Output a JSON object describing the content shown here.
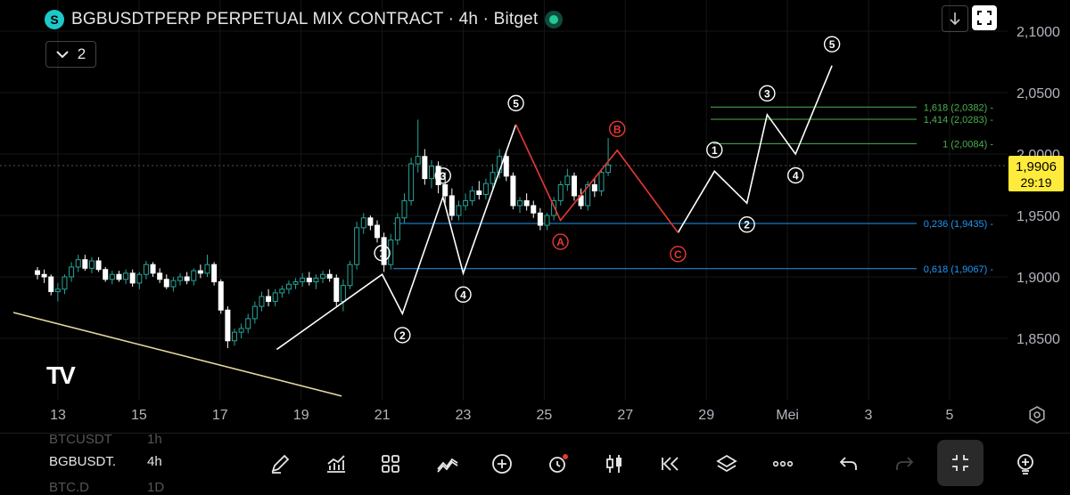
{
  "header": {
    "title": "BGBUSDTPERP PERPETUAL MIX CONTRACT · 4h · Bitget",
    "indicators_toggle": "2"
  },
  "colors": {
    "background": "#000000",
    "up_candle": "#26a69a",
    "down_candle": "#ffffff",
    "impulse_line": "#ffffff",
    "correction_line": "#e53935",
    "fib_green": "#4caf50",
    "fib_blue": "#2196f3",
    "trendline": "#e8d9a0",
    "price_tag_bg": "#ffeb3b"
  },
  "price_label": {
    "price": "1,9906",
    "countdown": "29:19"
  },
  "watchlist": [
    {
      "symbol": "BTCUSDT",
      "interval": "1h"
    },
    {
      "symbol": "BGBUSDT.",
      "interval": "4h"
    },
    {
      "symbol": "BTC.D",
      "interval": "1D"
    }
  ],
  "toolbar": [
    {
      "icon": "pencil-icon"
    },
    {
      "icon": "indicators-icon"
    },
    {
      "icon": "grid-icon"
    },
    {
      "icon": "wave-icon"
    },
    {
      "icon": "plus-circle-icon"
    },
    {
      "icon": "alert-clock-icon"
    },
    {
      "icon": "candles-icon"
    },
    {
      "icon": "rewind-icon"
    },
    {
      "icon": "layers-icon"
    },
    {
      "icon": "more-icon"
    },
    {
      "icon": "undo-icon"
    },
    {
      "icon": "redo-icon"
    },
    {
      "icon": "collapse-icon"
    },
    {
      "icon": "lightbulb-icon"
    }
  ],
  "chart_data": {
    "type": "candlestick",
    "x_ticks": [
      "13",
      "15",
      "17",
      "19",
      "21",
      "23",
      "25",
      "27",
      "29",
      "Mei",
      "3",
      "5"
    ],
    "y_ticks": [
      "2,1000",
      "2,0500",
      "2,0000",
      "1,9500",
      "1,9000",
      "1,8500"
    ],
    "ylim": [
      1.8,
      2.115
    ],
    "fib_levels": [
      {
        "label": "1,618 (2,0382)",
        "value": 2.0382,
        "color": "green"
      },
      {
        "label": "1,414 (2,0283)",
        "value": 2.0283,
        "color": "green"
      },
      {
        "label": "1 (2,0084)",
        "value": 2.0084,
        "color": "green"
      },
      {
        "label": "0,236 (1,9435)",
        "value": 1.9435,
        "color": "blue"
      },
      {
        "label": "0,618 (1,9067)",
        "value": 1.9067,
        "color": "blue"
      }
    ],
    "candles": [
      [
        1.905,
        1.908,
        1.898,
        1.902
      ],
      [
        1.902,
        1.906,
        1.895,
        1.9
      ],
      [
        1.9,
        1.902,
        1.885,
        1.888
      ],
      [
        1.888,
        1.895,
        1.88,
        1.89
      ],
      [
        1.89,
        1.902,
        1.886,
        1.9
      ],
      [
        1.9,
        1.912,
        1.896,
        1.908
      ],
      [
        1.908,
        1.918,
        1.904,
        1.914
      ],
      [
        1.914,
        1.918,
        1.905,
        1.907
      ],
      [
        1.907,
        1.916,
        1.903,
        1.913
      ],
      [
        1.913,
        1.916,
        1.904,
        1.906
      ],
      [
        1.906,
        1.908,
        1.896,
        1.898
      ],
      [
        1.898,
        1.905,
        1.894,
        1.902
      ],
      [
        1.902,
        1.905,
        1.896,
        1.898
      ],
      [
        1.898,
        1.906,
        1.894,
        1.903
      ],
      [
        1.903,
        1.906,
        1.892,
        1.895
      ],
      [
        1.895,
        1.904,
        1.89,
        1.902
      ],
      [
        1.902,
        1.913,
        1.898,
        1.91
      ],
      [
        1.91,
        1.912,
        1.9,
        1.903
      ],
      [
        1.903,
        1.907,
        1.895,
        1.898
      ],
      [
        1.898,
        1.902,
        1.89,
        1.892
      ],
      [
        1.892,
        1.9,
        1.888,
        1.897
      ],
      [
        1.897,
        1.903,
        1.893,
        1.9
      ],
      [
        1.9,
        1.904,
        1.894,
        1.897
      ],
      [
        1.897,
        1.907,
        1.893,
        1.905
      ],
      [
        1.905,
        1.91,
        1.899,
        1.903
      ],
      [
        1.903,
        1.918,
        1.9,
        1.91
      ],
      [
        1.91,
        1.912,
        1.893,
        1.896
      ],
      [
        1.896,
        1.898,
        1.87,
        1.873
      ],
      [
        1.873,
        1.876,
        1.842,
        1.848
      ],
      [
        1.848,
        1.858,
        1.844,
        1.855
      ],
      [
        1.855,
        1.862,
        1.85,
        1.858
      ],
      [
        1.858,
        1.87,
        1.854,
        1.866
      ],
      [
        1.866,
        1.88,
        1.862,
        1.876
      ],
      [
        1.876,
        1.888,
        1.872,
        1.884
      ],
      [
        1.884,
        1.89,
        1.876,
        1.88
      ],
      [
        1.88,
        1.89,
        1.876,
        1.887
      ],
      [
        1.887,
        1.893,
        1.883,
        1.89
      ],
      [
        1.89,
        1.897,
        1.886,
        1.894
      ],
      [
        1.894,
        1.899,
        1.89,
        1.896
      ],
      [
        1.896,
        1.903,
        1.892,
        1.899
      ],
      [
        1.899,
        1.904,
        1.893,
        1.896
      ],
      [
        1.896,
        1.902,
        1.89,
        1.899
      ],
      [
        1.899,
        1.905,
        1.895,
        1.902
      ],
      [
        1.902,
        1.906,
        1.896,
        1.899
      ],
      [
        1.899,
        1.902,
        1.876,
        1.88
      ],
      [
        1.88,
        1.898,
        1.872,
        1.893
      ],
      [
        1.893,
        1.913,
        1.89,
        1.91
      ],
      [
        1.91,
        1.945,
        1.906,
        1.94
      ],
      [
        1.94,
        1.952,
        1.935,
        1.948
      ],
      [
        1.948,
        1.95,
        1.938,
        1.942
      ],
      [
        1.942,
        1.946,
        1.928,
        1.932
      ],
      [
        1.932,
        1.936,
        1.904,
        1.91
      ],
      [
        1.91,
        1.935,
        1.906,
        1.93
      ],
      [
        1.93,
        1.952,
        1.926,
        1.948
      ],
      [
        1.948,
        1.968,
        1.944,
        1.962
      ],
      [
        1.962,
        1.997,
        1.958,
        1.992
      ],
      [
        1.992,
        2.028,
        1.985,
        1.998
      ],
      [
        1.998,
        2.004,
        1.975,
        1.98
      ],
      [
        1.98,
        1.995,
        1.972,
        1.99
      ],
      [
        1.99,
        1.994,
        1.968,
        1.975
      ],
      [
        1.975,
        1.985,
        1.96,
        1.966
      ],
      [
        1.966,
        1.972,
        1.946,
        1.95
      ],
      [
        1.95,
        1.962,
        1.946,
        1.958
      ],
      [
        1.958,
        1.968,
        1.954,
        1.962
      ],
      [
        1.962,
        1.974,
        1.958,
        1.97
      ],
      [
        1.97,
        1.978,
        1.963,
        1.967
      ],
      [
        1.967,
        1.98,
        1.963,
        1.976
      ],
      [
        1.976,
        1.992,
        1.972,
        1.985
      ],
      [
        1.985,
        2.004,
        1.98,
        1.998
      ],
      [
        1.998,
        2.002,
        1.978,
        1.982
      ],
      [
        1.982,
        1.985,
        1.955,
        1.958
      ],
      [
        1.958,
        1.965,
        1.952,
        1.962
      ],
      [
        1.962,
        1.968,
        1.954,
        1.958
      ],
      [
        1.958,
        1.962,
        1.948,
        1.952
      ],
      [
        1.952,
        1.956,
        1.938,
        1.942
      ],
      [
        1.942,
        1.952,
        1.938,
        1.95
      ],
      [
        1.95,
        1.965,
        1.946,
        1.962
      ],
      [
        1.962,
        1.978,
        1.958,
        1.975
      ],
      [
        1.975,
        1.988,
        1.97,
        1.982
      ],
      [
        1.982,
        1.985,
        1.962,
        1.966
      ],
      [
        1.966,
        1.972,
        1.955,
        1.958
      ],
      [
        1.958,
        1.978,
        1.954,
        1.975
      ],
      [
        1.975,
        1.98,
        1.965,
        1.97
      ],
      [
        1.97,
        1.988,
        1.966,
        1.985
      ],
      [
        1.985,
        2.013,
        1.982,
        1.991
      ]
    ],
    "impulse_waves": [
      {
        "points": [
          [
            18.4,
            1.841
          ],
          [
            21.0,
            1.902
          ],
          [
            21.5,
            1.87
          ],
          [
            22.5,
            1.965
          ],
          [
            23.0,
            1.903
          ],
          [
            24.3,
            2.024
          ]
        ],
        "labels": [
          "①",
          "②",
          "③",
          "④",
          "⑤"
        ]
      },
      {
        "points": [
          [
            28.3,
            1.936
          ],
          [
            29.2,
            1.986
          ],
          [
            30.0,
            1.96
          ],
          [
            30.5,
            2.032
          ],
          [
            31.2,
            2.0
          ],
          [
            32.1,
            2.072
          ]
        ],
        "labels": [
          "①",
          "②",
          "③",
          "④",
          "⑤"
        ]
      }
    ],
    "correction_waves": [
      {
        "points": [
          [
            24.3,
            2.024
          ],
          [
            25.4,
            1.946
          ],
          [
            26.8,
            2.003
          ],
          [
            28.3,
            1.936
          ]
        ],
        "labels": [
          "Ⓐ",
          "Ⓑ",
          "Ⓒ"
        ]
      }
    ],
    "trendline": [
      [
        11.9,
        1.871
      ],
      [
        20.0,
        1.803
      ]
    ]
  }
}
